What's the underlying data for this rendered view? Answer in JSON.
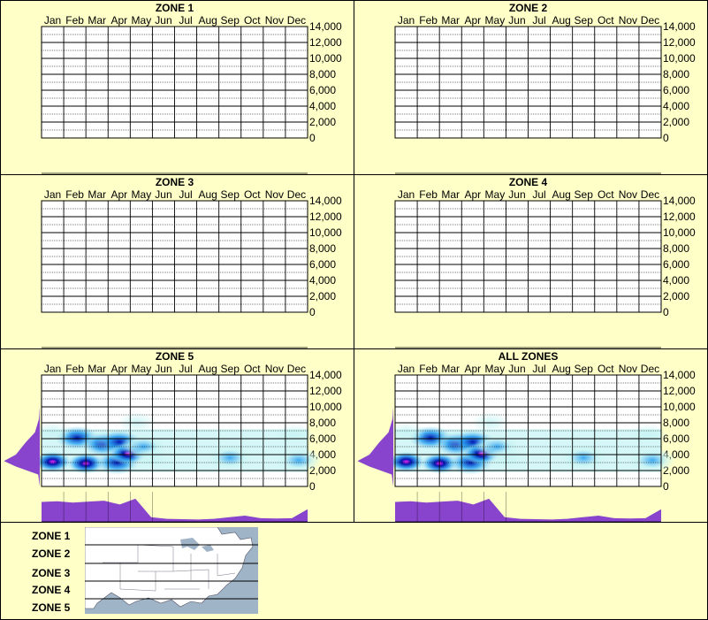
{
  "months": [
    "Jan",
    "Feb",
    "Mar",
    "Apr",
    "May",
    "Jun",
    "Jul",
    "Aug",
    "Sep",
    "Oct",
    "Nov",
    "Dec"
  ],
  "y_ticks": [
    "14,000",
    "12,000",
    "10,000",
    "8,000",
    "6,000",
    "4,000",
    "2,000",
    "0"
  ],
  "colors": {
    "background": "#ffffc8",
    "density_light": "#c8f4f4",
    "density_mid": "#2aa0f0",
    "density_high": "#0018b0",
    "density_peak": "#ff20ff",
    "marginal": "#8844cc",
    "map_water": "#a0b4c8",
    "map_land": "#ffffff"
  },
  "legend": {
    "zones": [
      "ZONE 1",
      "ZONE 2",
      "ZONE 3",
      "ZONE 4",
      "ZONE 5"
    ]
  },
  "chart_data": [
    {
      "type": "heatmap",
      "title": "ZONE 1",
      "xlabel": "",
      "ylabel": "",
      "categories": [
        "Jan",
        "Feb",
        "Mar",
        "Apr",
        "May",
        "Jun",
        "Jul",
        "Aug",
        "Sep",
        "Oct",
        "Nov",
        "Dec"
      ],
      "ylim": [
        0,
        14000
      ],
      "has_data": false
    },
    {
      "type": "heatmap",
      "title": "ZONE 2",
      "xlabel": "",
      "ylabel": "",
      "categories": [
        "Jan",
        "Feb",
        "Mar",
        "Apr",
        "May",
        "Jun",
        "Jul",
        "Aug",
        "Sep",
        "Oct",
        "Nov",
        "Dec"
      ],
      "ylim": [
        0,
        14000
      ],
      "has_data": false
    },
    {
      "type": "heatmap",
      "title": "ZONE 3",
      "xlabel": "",
      "ylabel": "",
      "categories": [
        "Jan",
        "Feb",
        "Mar",
        "Apr",
        "May",
        "Jun",
        "Jul",
        "Aug",
        "Sep",
        "Oct",
        "Nov",
        "Dec"
      ],
      "ylim": [
        0,
        14000
      ],
      "has_data": false
    },
    {
      "type": "heatmap",
      "title": "ZONE 4",
      "xlabel": "",
      "ylabel": "",
      "categories": [
        "Jan",
        "Feb",
        "Mar",
        "Apr",
        "May",
        "Jun",
        "Jul",
        "Aug",
        "Sep",
        "Oct",
        "Nov",
        "Dec"
      ],
      "ylim": [
        0,
        14000
      ],
      "has_data": false
    },
    {
      "type": "heatmap",
      "title": "ZONE 5",
      "xlabel": "",
      "ylabel": "",
      "categories": [
        "Jan",
        "Feb",
        "Mar",
        "Apr",
        "May",
        "Jun",
        "Jul",
        "Aug",
        "Sep",
        "Oct",
        "Nov",
        "Dec"
      ],
      "ylim": [
        0,
        14000
      ],
      "has_data": true,
      "hotspots": [
        {
          "month": 0.5,
          "elev": 3100,
          "level": 4
        },
        {
          "month": 1.6,
          "elev": 6100,
          "level": 3
        },
        {
          "month": 2.0,
          "elev": 2900,
          "level": 4
        },
        {
          "month": 2.8,
          "elev": 5300,
          "level": 3
        },
        {
          "month": 3.5,
          "elev": 5600,
          "level": 3
        },
        {
          "month": 3.4,
          "elev": 3000,
          "level": 3
        },
        {
          "month": 3.9,
          "elev": 4100,
          "level": 4
        },
        {
          "month": 4.6,
          "elev": 5000,
          "level": 2
        },
        {
          "month": 5.0,
          "elev": 3500,
          "level": 1
        },
        {
          "month": 8.5,
          "elev": 3600,
          "level": 2
        },
        {
          "month": 0.5,
          "elev": 6800,
          "level": 1
        },
        {
          "month": 11.6,
          "elev": 3300,
          "level": 2
        },
        {
          "month": 11.4,
          "elev": 6500,
          "level": 1
        },
        {
          "month": 4.3,
          "elev": 8000,
          "level": 1
        }
      ],
      "elevation_profile": [
        [
          0,
          0
        ],
        [
          1500,
          0.02
        ],
        [
          2500,
          0.3
        ],
        [
          3200,
          0.45
        ],
        [
          4000,
          0.3
        ],
        [
          5500,
          0.18
        ],
        [
          6800,
          0.06
        ],
        [
          8500,
          0.01
        ],
        [
          10000,
          0
        ]
      ],
      "monthly_profile": [
        0.68,
        0.7,
        0.66,
        0.69,
        0.72,
        0.6,
        0.78,
        0.2,
        0.15,
        0.14,
        0.13,
        0.15,
        0.2,
        0.25,
        0.17,
        0.16,
        0.17,
        0.45
      ]
    },
    {
      "type": "heatmap",
      "title": "ALL ZONES",
      "xlabel": "",
      "ylabel": "",
      "categories": [
        "Jan",
        "Feb",
        "Mar",
        "Apr",
        "May",
        "Jun",
        "Jul",
        "Aug",
        "Sep",
        "Oct",
        "Nov",
        "Dec"
      ],
      "ylim": [
        0,
        14000
      ],
      "has_data": true,
      "hotspots": [
        {
          "month": 0.5,
          "elev": 3100,
          "level": 4
        },
        {
          "month": 1.6,
          "elev": 6100,
          "level": 3
        },
        {
          "month": 2.0,
          "elev": 2900,
          "level": 4
        },
        {
          "month": 2.8,
          "elev": 5300,
          "level": 3
        },
        {
          "month": 3.5,
          "elev": 5600,
          "level": 3
        },
        {
          "month": 3.4,
          "elev": 3000,
          "level": 3
        },
        {
          "month": 3.9,
          "elev": 4100,
          "level": 4
        },
        {
          "month": 4.6,
          "elev": 5000,
          "level": 2
        },
        {
          "month": 5.0,
          "elev": 3500,
          "level": 1
        },
        {
          "month": 8.5,
          "elev": 3600,
          "level": 2
        },
        {
          "month": 0.5,
          "elev": 6800,
          "level": 1
        },
        {
          "month": 11.6,
          "elev": 3300,
          "level": 2
        },
        {
          "month": 11.4,
          "elev": 6500,
          "level": 1
        },
        {
          "month": 4.3,
          "elev": 8000,
          "level": 1
        }
      ],
      "elevation_profile": [
        [
          0,
          0
        ],
        [
          1500,
          0.02
        ],
        [
          2500,
          0.3
        ],
        [
          3200,
          0.45
        ],
        [
          4000,
          0.3
        ],
        [
          5500,
          0.18
        ],
        [
          6800,
          0.06
        ],
        [
          8500,
          0.01
        ],
        [
          10000,
          0
        ]
      ],
      "monthly_profile": [
        0.68,
        0.7,
        0.66,
        0.69,
        0.72,
        0.6,
        0.78,
        0.2,
        0.15,
        0.14,
        0.13,
        0.15,
        0.2,
        0.25,
        0.17,
        0.16,
        0.17,
        0.45
      ]
    }
  ]
}
